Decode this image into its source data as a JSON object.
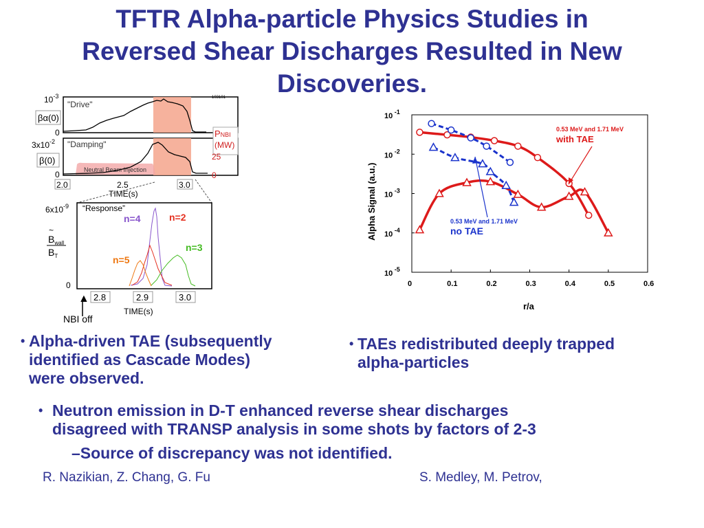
{
  "title": {
    "line1": "TFTR Alpha-particle Physics Studies in",
    "line2": "Reversed Shear Discharges Resulted in New",
    "line3": "Discoveries."
  },
  "left_figure": {
    "drive_panel": {
      "label": "\"Drive\"",
      "ytop_mantissa": "10",
      "ytop_exp": "-3",
      "ylabel": "βα(0)",
      "ybottom": "0",
      "shot_number": "103101"
    },
    "damping_panel": {
      "label": "\"Damping\"",
      "ytop_mantissa": "3x10",
      "ytop_exp": "-2",
      "ylabel": "β(0)",
      "ybottom": "0",
      "nbi_label": "Neutral Beam Injection",
      "pnbi_label": "P",
      "pnbi_sub": "NBI",
      "pnbi_unit": "(MW)",
      "pnbi_top": "25",
      "pnbi_bottom": "0"
    },
    "time_axis_top": {
      "ticks": [
        "2.0",
        "2.5",
        "3.0"
      ],
      "label": "TIME(s)"
    },
    "response_panel": {
      "label": "“Response”",
      "ytop_mantissa": "6x10",
      "ytop_exp": "-9",
      "ylabel_num": "B",
      "ylabel_num_sub": "wall",
      "ylabel_den": "B",
      "ylabel_den_sub": "T",
      "ybottom": "0",
      "modes": [
        {
          "label": "n=4",
          "color": "#8855cc"
        },
        {
          "label": "n=2",
          "color": "#e53020"
        },
        {
          "label": "n=3",
          "color": "#44bb22"
        },
        {
          "label": "n=5",
          "color": "#ee7711"
        }
      ],
      "ticks": [
        "2.8",
        "2.9",
        "3.0"
      ],
      "xlabel": "TIME(s)",
      "nbi_off": "NBI off"
    }
  },
  "chart_data": {
    "type": "scatter",
    "xlabel": "r/a",
    "ylabel": "Alpha Signal (a.u.)",
    "xlim": [
      0,
      0.6
    ],
    "ylim": [
      1e-05,
      0.1
    ],
    "yscale": "log",
    "x_ticks": [
      "0",
      "0.1",
      "0.2",
      "0.3",
      "0.4",
      "0.5",
      "0.6"
    ],
    "y_ticks": [
      {
        "mantissa": "10",
        "exp": "-1",
        "value": 0.1
      },
      {
        "mantissa": "10",
        "exp": "-2",
        "value": 0.01
      },
      {
        "mantissa": "10",
        "exp": "-3",
        "value": 0.001
      },
      {
        "mantissa": "10",
        "exp": "-4",
        "value": 0.0001
      },
      {
        "mantissa": "10",
        "exp": "-5",
        "value": 1e-05
      }
    ],
    "series": [
      {
        "name": "0.53 MeV with TAE",
        "color": "#dd1a1a",
        "marker": "circle",
        "style": "solid",
        "points": [
          [
            0.02,
            0.036
          ],
          [
            0.09,
            0.031
          ],
          [
            0.15,
            0.027
          ],
          [
            0.21,
            0.022
          ],
          [
            0.27,
            0.016
          ],
          [
            0.32,
            0.0082
          ],
          [
            0.4,
            0.0018
          ],
          [
            0.45,
            0.00028
          ]
        ]
      },
      {
        "name": "1.71 MeV with TAE",
        "color": "#dd1a1a",
        "marker": "triangle",
        "style": "solid",
        "points": [
          [
            0.02,
            0.00012
          ],
          [
            0.07,
            0.001
          ],
          [
            0.14,
            0.0019
          ],
          [
            0.2,
            0.002
          ],
          [
            0.27,
            0.00095
          ],
          [
            0.33,
            0.00045
          ],
          [
            0.4,
            0.00085
          ],
          [
            0.44,
            0.0011
          ],
          [
            0.5,
            0.0001
          ]
        ]
      },
      {
        "name": "0.53 MeV no TAE",
        "color": "#1a33cc",
        "marker": "circle",
        "style": "dashed",
        "points": [
          [
            0.05,
            0.06
          ],
          [
            0.1,
            0.041
          ],
          [
            0.15,
            0.026
          ],
          [
            0.19,
            0.016
          ],
          [
            0.25,
            0.0062
          ]
        ]
      },
      {
        "name": "1.71 MeV no TAE",
        "color": "#1a33cc",
        "marker": "triangle",
        "style": "dashed",
        "points": [
          [
            0.055,
            0.015
          ],
          [
            0.11,
            0.0082
          ],
          [
            0.18,
            0.0057
          ],
          [
            0.2,
            0.0036
          ],
          [
            0.24,
            0.0016
          ],
          [
            0.26,
            0.0006
          ]
        ]
      }
    ],
    "annotations": [
      {
        "line1": "0.53 MeV and 1.71 MeV",
        "line2": "with TAE",
        "color": "#dd1a1a"
      },
      {
        "line1": "0.53 MeV and 1.71 MeV",
        "line2": "no TAE",
        "color": "#1a33cc"
      }
    ]
  },
  "bullets": {
    "left": [
      "Alpha-driven TAE (subsequently",
      "identified as Cascade Modes)",
      "were observed."
    ],
    "right": [
      "TAEs redistributed deeply trapped",
      "alpha-particles"
    ],
    "bottom": [
      "Neutron emission in D-T enhanced reverse shear discharges",
      "disagreed with TRANSP analysis in some shots by factors of 2-3"
    ],
    "sub": "–Source of discrepancy was not identified.",
    "bullet_char": "•"
  },
  "credits": {
    "left": "R. Nazikian, Z. Chang, G. Fu",
    "right": "S. Medley, M. Petrov,"
  }
}
